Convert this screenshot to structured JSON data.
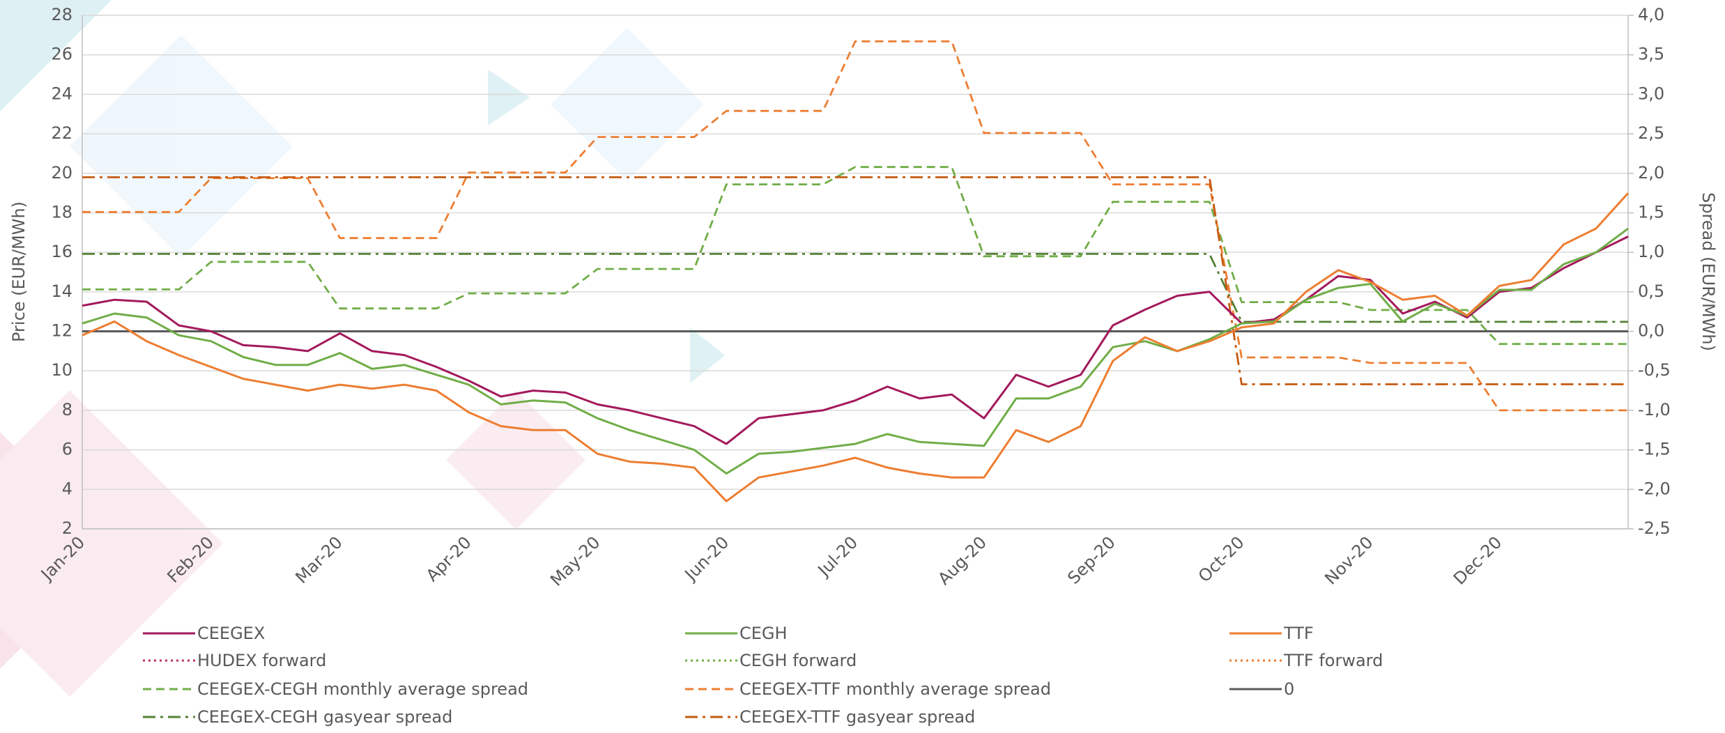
{
  "chart_data": {
    "type": "line",
    "y_label": "Price (EUR/MWh)",
    "y2_label": "Spread (EUR/MWh)",
    "categories": [
      "Jan-20",
      null,
      null,
      null,
      "Feb-20",
      null,
      null,
      null,
      "Mar-20",
      null,
      null,
      null,
      "Apr-20",
      null,
      null,
      null,
      "May-20",
      null,
      null,
      null,
      "Jun-20",
      null,
      null,
      null,
      "Jul-20",
      null,
      null,
      null,
      "Aug-20",
      null,
      null,
      null,
      "Sep-20",
      null,
      null,
      null,
      "Oct-20",
      null,
      null,
      null,
      "Nov-20",
      null,
      null,
      null,
      "Dec-20",
      null,
      null,
      null,
      null
    ],
    "ylim": [
      2,
      28
    ],
    "yticks": [
      2,
      4,
      6,
      8,
      10,
      12,
      14,
      16,
      18,
      20,
      22,
      24,
      26,
      28
    ],
    "y2lim": [
      -2.5,
      4
    ],
    "y2ticks": [
      {
        "value": -2.5,
        "label": "-2,5"
      },
      {
        "value": -2,
        "label": "-2,0"
      },
      {
        "value": -1.5,
        "label": "-1,5"
      },
      {
        "value": -1,
        "label": "-1,0"
      },
      {
        "value": -0.5,
        "label": "-0,5"
      },
      {
        "value": 0,
        "label": "0,0"
      },
      {
        "value": 0.5,
        "label": "0,5"
      },
      {
        "value": 1,
        "label": "1,0"
      },
      {
        "value": 1.5,
        "label": "1,5"
      },
      {
        "value": 2,
        "label": "2,0"
      },
      {
        "value": 2.5,
        "label": "2,5"
      },
      {
        "value": 3,
        "label": "3,0"
      },
      {
        "value": 3.5,
        "label": "3,5"
      },
      {
        "value": 4,
        "label": "4,0"
      }
    ],
    "grid": true,
    "legend": "bottom",
    "series": [
      {
        "name": "CEEGEX",
        "color": "#a3195b",
        "dash": "solid",
        "values": [
          13.3,
          13.6,
          13.5,
          12.3,
          12.0,
          11.3,
          11.2,
          11.0,
          11.9,
          11.0,
          10.8,
          10.2,
          9.5,
          8.7,
          9.0,
          8.9,
          8.3,
          8.0,
          7.6,
          7.2,
          6.3,
          7.6,
          7.8,
          8.0,
          8.5,
          9.2,
          8.6,
          8.8,
          7.6,
          9.8,
          9.2,
          9.8,
          12.3,
          13.1,
          13.8,
          14.0,
          12.4,
          12.6,
          13.6,
          14.8,
          14.6,
          12.9,
          13.5,
          12.7,
          14.0,
          14.2,
          15.2,
          16.0,
          16.8
        ]
      },
      {
        "name": "CEGH",
        "color": "#70ad47",
        "dash": "solid",
        "values": [
          12.4,
          12.9,
          12.7,
          11.8,
          11.5,
          10.7,
          10.3,
          10.3,
          10.9,
          10.1,
          10.3,
          9.8,
          9.3,
          8.3,
          8.5,
          8.4,
          7.6,
          7.0,
          6.5,
          6.0,
          4.8,
          5.8,
          5.9,
          6.1,
          6.3,
          6.8,
          6.4,
          6.3,
          6.2,
          8.6,
          8.6,
          9.2,
          11.2,
          11.5,
          11.0,
          11.6,
          12.4,
          12.5,
          13.6,
          14.2,
          14.4,
          12.5,
          13.4,
          12.8,
          14.1,
          14.1,
          15.4,
          16.0,
          17.2
        ]
      },
      {
        "name": "TTF",
        "color": "#ed7d31",
        "dash": "solid",
        "values": [
          11.8,
          12.5,
          11.5,
          10.8,
          10.2,
          9.6,
          9.3,
          9.0,
          9.3,
          9.1,
          9.3,
          9.0,
          7.9,
          7.2,
          7.0,
          7.0,
          5.8,
          5.4,
          5.3,
          5.1,
          3.4,
          4.6,
          4.9,
          5.2,
          5.6,
          5.1,
          4.8,
          4.6,
          4.6,
          7.0,
          6.4,
          7.2,
          10.5,
          11.7,
          11.0,
          11.5,
          12.2,
          12.4,
          14.0,
          15.1,
          14.5,
          13.6,
          13.8,
          12.8,
          14.3,
          14.6,
          16.4,
          17.2,
          19.0
        ]
      },
      {
        "name": "HUDEX forward",
        "color": "#c0306a",
        "dash": "dotted",
        "values": [
          null,
          null,
          null,
          null,
          null,
          null,
          null,
          null,
          null,
          null,
          null,
          null,
          null,
          null,
          null,
          null,
          null,
          null,
          null,
          null,
          null,
          null,
          null,
          null,
          null,
          null,
          null,
          null,
          null,
          null,
          null,
          null,
          null,
          null,
          null,
          null,
          null,
          null,
          null,
          null,
          null,
          null,
          null,
          null,
          null,
          null,
          null,
          null,
          null
        ]
      },
      {
        "name": "CEGH forward",
        "color": "#70ad47",
        "dash": "dotted",
        "values": [
          null,
          null,
          null,
          null,
          null,
          null,
          null,
          null,
          null,
          null,
          null,
          null,
          null,
          null,
          null,
          null,
          null,
          null,
          null,
          null,
          null,
          null,
          null,
          null,
          null,
          null,
          null,
          null,
          null,
          null,
          null,
          null,
          null,
          null,
          null,
          null,
          null,
          null,
          null,
          null,
          null,
          null,
          null,
          null,
          null,
          null,
          null,
          null,
          null
        ]
      },
      {
        "name": "TTF forward",
        "color": "#ed7d31",
        "dash": "dotted",
        "values": [
          null,
          null,
          null,
          null,
          null,
          null,
          null,
          null,
          null,
          null,
          null,
          null,
          null,
          null,
          null,
          null,
          null,
          null,
          null,
          null,
          null,
          null,
          null,
          null,
          null,
          null,
          null,
          null,
          null,
          null,
          null,
          null,
          null,
          null,
          null,
          null,
          null,
          null,
          null,
          null,
          null,
          null,
          null,
          null,
          null,
          null,
          null,
          null,
          null
        ]
      },
      {
        "name": "CEEGEX-CEGH monthly average spread",
        "color": "#70ad47",
        "dash": "dashed",
        "axis": "y2",
        "values": [
          0.53,
          0.53,
          0.53,
          0.53,
          0.88,
          0.88,
          0.88,
          0.88,
          0.29,
          0.29,
          0.29,
          0.29,
          0.48,
          0.48,
          0.48,
          0.48,
          0.79,
          0.79,
          0.79,
          0.79,
          1.86,
          1.86,
          1.86,
          1.86,
          2.08,
          2.08,
          2.08,
          2.08,
          0.95,
          0.95,
          0.95,
          0.95,
          1.64,
          1.64,
          1.64,
          1.64,
          0.37,
          0.37,
          0.37,
          0.37,
          0.27,
          0.27,
          0.27,
          0.27,
          -0.16,
          -0.16,
          -0.16,
          -0.16,
          -0.16
        ]
      },
      {
        "name": "CEEGEX-TTF monthly average spread",
        "color": "#ed7d31",
        "dash": "dashed",
        "axis": "y2",
        "values": [
          1.51,
          1.51,
          1.51,
          1.51,
          1.94,
          1.94,
          1.94,
          1.94,
          1.18,
          1.18,
          1.18,
          1.18,
          2.01,
          2.01,
          2.01,
          2.01,
          2.46,
          2.46,
          2.46,
          2.46,
          2.79,
          2.79,
          2.79,
          2.79,
          3.67,
          3.67,
          3.67,
          3.67,
          2.51,
          2.51,
          2.51,
          2.51,
          1.86,
          1.86,
          1.86,
          1.86,
          -0.33,
          -0.33,
          -0.33,
          -0.33,
          -0.4,
          -0.4,
          -0.4,
          -0.4,
          -1.0,
          -1.0,
          -1.0,
          -1.0,
          -1.0
        ]
      },
      {
        "name": "0",
        "color": "#595959",
        "dash": "solid",
        "axis": "y2",
        "values": [
          0,
          0,
          0,
          0,
          0,
          0,
          0,
          0,
          0,
          0,
          0,
          0,
          0,
          0,
          0,
          0,
          0,
          0,
          0,
          0,
          0,
          0,
          0,
          0,
          0,
          0,
          0,
          0,
          0,
          0,
          0,
          0,
          0,
          0,
          0,
          0,
          0,
          0,
          0,
          0,
          0,
          0,
          0,
          0,
          0,
          0,
          0,
          0,
          0
        ]
      },
      {
        "name": "CEEGEX-CEGH gasyear spread",
        "color": "#548235",
        "dash": "dashdot",
        "axis": "y2",
        "values": [
          0.98,
          0.98,
          0.98,
          0.98,
          0.98,
          0.98,
          0.98,
          0.98,
          0.98,
          0.98,
          0.98,
          0.98,
          0.98,
          0.98,
          0.98,
          0.98,
          0.98,
          0.98,
          0.98,
          0.98,
          0.98,
          0.98,
          0.98,
          0.98,
          0.98,
          0.98,
          0.98,
          0.98,
          0.98,
          0.98,
          0.98,
          0.98,
          0.98,
          0.98,
          0.98,
          0.98,
          0.12,
          0.12,
          0.12,
          0.12,
          0.12,
          0.12,
          0.12,
          0.12,
          0.12,
          0.12,
          0.12,
          0.12,
          0.12
        ]
      },
      {
        "name": "CEEGEX-TTF gasyear spread",
        "color": "#c55a11",
        "dash": "dashdot",
        "axis": "y2",
        "values": [
          1.95,
          1.95,
          1.95,
          1.95,
          1.95,
          1.95,
          1.95,
          1.95,
          1.95,
          1.95,
          1.95,
          1.95,
          1.95,
          1.95,
          1.95,
          1.95,
          1.95,
          1.95,
          1.95,
          1.95,
          1.95,
          1.95,
          1.95,
          1.95,
          1.95,
          1.95,
          1.95,
          1.95,
          1.95,
          1.95,
          1.95,
          1.95,
          1.95,
          1.95,
          1.95,
          1.95,
          -0.67,
          -0.67,
          -0.67,
          -0.67,
          -0.67,
          -0.67,
          -0.67,
          -0.67,
          -0.67,
          -0.67,
          -0.67,
          -0.67,
          -0.67
        ]
      }
    ]
  }
}
